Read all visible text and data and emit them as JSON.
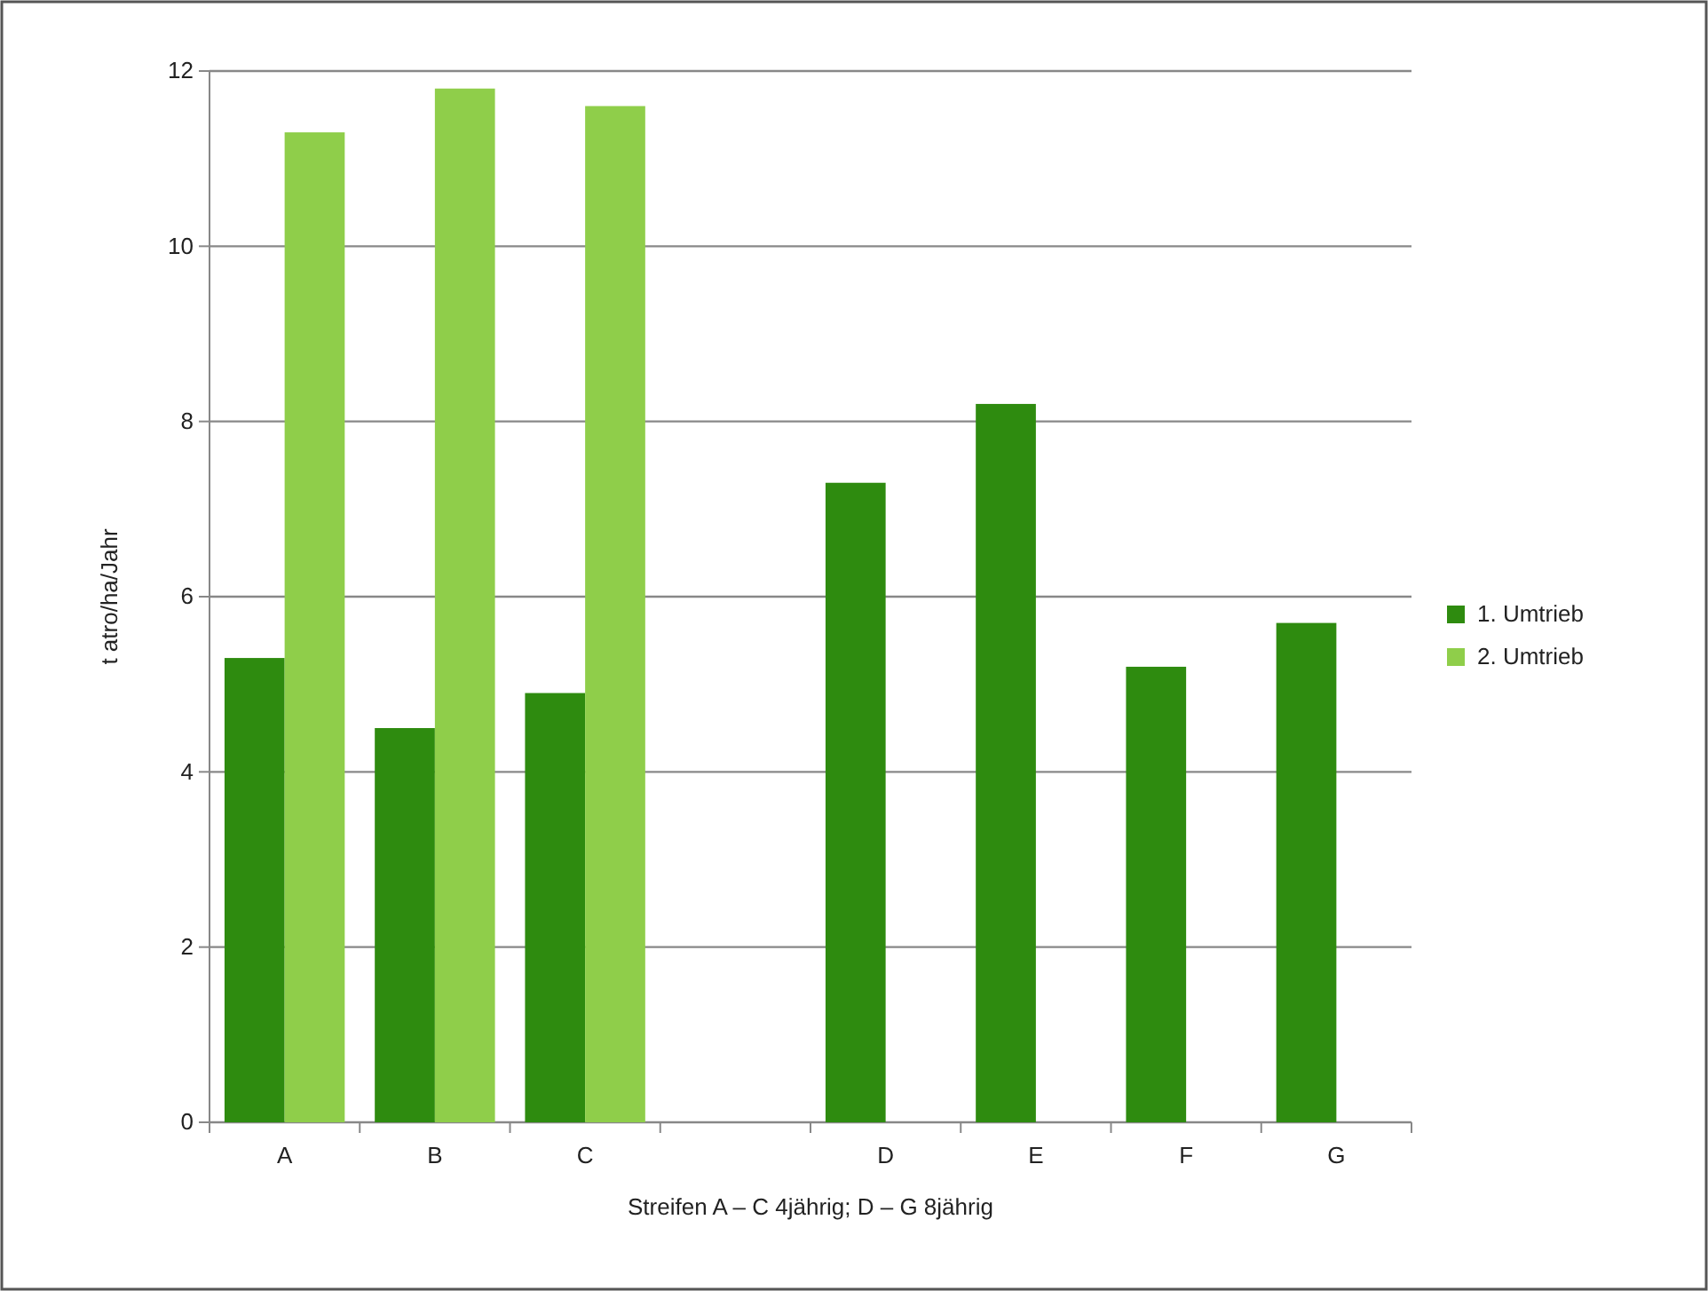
{
  "chart_data": {
    "type": "bar",
    "xlabel": "Streifen A – C 4jährig; D – G 8jährig",
    "ylabel": "t atro/ha/Jahr",
    "categories": [
      "A",
      "B",
      "C",
      null,
      "D",
      "E",
      "F",
      "G"
    ],
    "series": [
      {
        "name": "1. Umtrieb",
        "color": "#2e8b0f",
        "values": [
          5.3,
          4.5,
          4.9,
          null,
          7.3,
          8.2,
          5.2,
          5.7
        ]
      },
      {
        "name": "2. Umtrieb",
        "color": "#8fce4a",
        "values": [
          11.3,
          11.8,
          11.6,
          null,
          null,
          null,
          null,
          null
        ]
      }
    ],
    "ylim": [
      0,
      12
    ],
    "yticks": [
      0,
      2,
      4,
      6,
      8,
      10,
      12
    ],
    "grid": "y",
    "legend": "right"
  }
}
